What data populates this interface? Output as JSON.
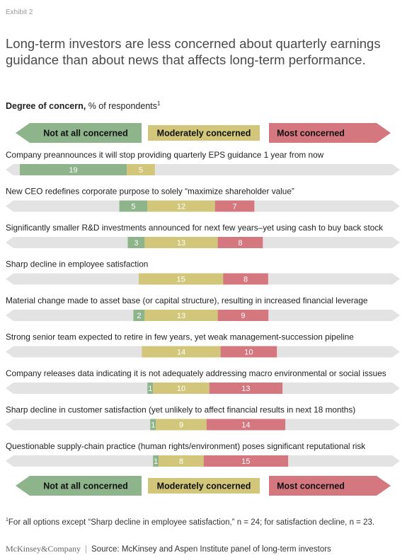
{
  "exhibit": "Exhibit 2",
  "title": "Long-term investors are less concerned about quarterly earnings guidance than about news that affects long-term performance.",
  "subtitle_bold": "Degree of concern,",
  "subtitle_rest": " % of respondents",
  "subtitle_sup": "1",
  "footnote_sup": "1",
  "footnote": "For all options except “Sharp decline in employee satisfaction,” n = 24; for satisfaction decline, n = 23.",
  "logo": "McKinsey&Company",
  "source": "Source: McKinsey and Aspen Institute panel of long-term investors",
  "colors": {
    "not_at_all": "#8db48a",
    "moderately": "#d1c67a",
    "most": "#d5777e",
    "track": "#e3e3e3"
  },
  "chart_data": {
    "type": "bar",
    "orientation": "horizontal-diverging",
    "legend": [
      "Not at all concerned",
      "Moderately concerned",
      "Most concerned"
    ],
    "legend_placement": "top and bottom",
    "series": [
      {
        "name": "Not at all concerned",
        "values": [
          19,
          5,
          3,
          0,
          2,
          0,
          1,
          1,
          1
        ]
      },
      {
        "name": "Moderately concerned",
        "values": [
          5,
          12,
          13,
          15,
          13,
          14,
          10,
          9,
          8
        ]
      },
      {
        "name": "Most concerned",
        "values": [
          0,
          7,
          8,
          8,
          9,
          10,
          13,
          14,
          15
        ]
      }
    ],
    "categories": [
      "Company preannounces it will stop providing quarterly EPS guidance 1 year from now",
      "New CEO redefines corporate purpose to solely “maximize shareholder value”",
      "Significantly smaller R&D investments announced for next few years–yet using cash to buy back stock",
      "Sharp decline in employee satisfaction",
      "Material change made to asset base (or capital structure), resulting in increased financial leverage",
      "Strong senior team expected to retire in few years, yet weak management-succession pipeline",
      "Company releases data indicating it is not adequately addressing macro environmental or social issues",
      "Sharp decline in customer satisfaction (yet unlikely to affect financial results in next 18 months)",
      "Questionable supply-chain practice (human rights/environment) poses significant reputational risk"
    ]
  }
}
